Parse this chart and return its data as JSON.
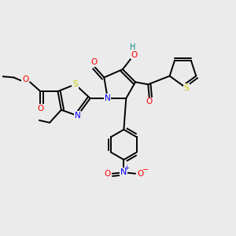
{
  "background_color": "#ebebeb",
  "fig_width": 3.0,
  "fig_height": 3.0,
  "dpi": 100,
  "atom_colors": {
    "N": "#0000ff",
    "O": "#ff0000",
    "S": "#cccc00",
    "H": "#008080",
    "C": "#000000"
  },
  "bond_color": "#000000",
  "bond_lw": 1.4
}
